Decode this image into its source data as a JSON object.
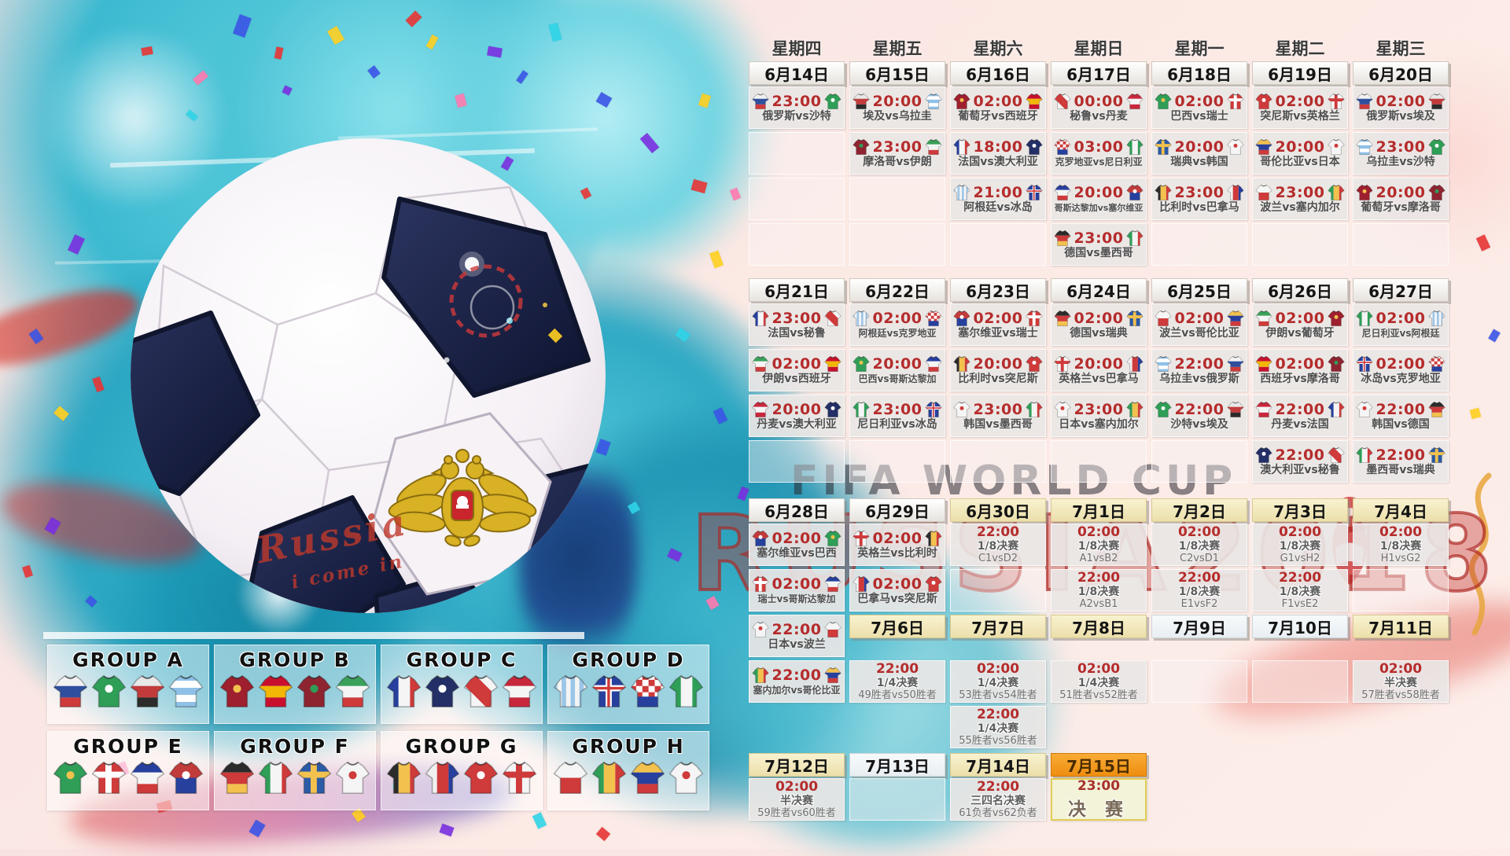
{
  "watermarks": {
    "fifa": "FIFA WORLD CUP",
    "russia": "RUSSIA2018"
  },
  "ball_text": {
    "line1": "Russia",
    "line2": "i come in"
  },
  "weekdays": [
    "星期四",
    "星期五",
    "星期六",
    "星期日",
    "星期一",
    "星期二",
    "星期三"
  ],
  "colors": {
    "time_red": "#b52c2c",
    "date_knockout_bg": "#f2ecc8",
    "final_header_bg": "#f59a23",
    "watermark_red": "#b5322f"
  },
  "groups": [
    {
      "name": "GROUP A",
      "teams": [
        "俄罗斯",
        "沙特",
        "埃及",
        "乌拉圭"
      ]
    },
    {
      "name": "GROUP B",
      "teams": [
        "葡萄牙",
        "西班牙",
        "摩洛哥",
        "伊朗"
      ]
    },
    {
      "name": "GROUP C",
      "teams": [
        "法国",
        "澳大利亚",
        "秘鲁",
        "丹麦"
      ]
    },
    {
      "name": "GROUP D",
      "teams": [
        "阿根廷",
        "冰岛",
        "克罗地亚",
        "尼日利亚"
      ]
    },
    {
      "name": "GROUP E",
      "teams": [
        "巴西",
        "瑞士",
        "哥斯达黎加",
        "塞尔维亚"
      ]
    },
    {
      "name": "GROUP F",
      "teams": [
        "德国",
        "墨西哥",
        "瑞典",
        "韩国"
      ]
    },
    {
      "name": "GROUP G",
      "teams": [
        "比利时",
        "巴拿马",
        "突尼斯",
        "英格兰"
      ]
    },
    {
      "name": "GROUP H",
      "teams": [
        "波兰",
        "塞内加尔",
        "哥伦比亚",
        "日本"
      ]
    }
  ],
  "teams": {
    "俄罗斯": {
      "p": "h3",
      "c": [
        "#f2f2f2",
        "#2f4f9e",
        "#cf3a3a"
      ]
    },
    "沙特": {
      "p": "solid",
      "c": [
        "#2f9e57"
      ],
      "e": "#ffffff"
    },
    "埃及": {
      "p": "h3",
      "c": [
        "#e8e8e8",
        "#c23b3b",
        "#2b2b2b"
      ]
    },
    "乌拉圭": {
      "p": "hoops",
      "c": [
        "#8fc1e8",
        "#ffffff"
      ]
    },
    "葡萄牙": {
      "p": "solid",
      "c": [
        "#9e1f2e"
      ],
      "e": "#f2c14e"
    },
    "西班牙": {
      "p": "h3",
      "c": [
        "#c8102e",
        "#f2b705",
        "#c8102e"
      ]
    },
    "摩洛哥": {
      "p": "solid",
      "c": [
        "#8e2430"
      ],
      "e": "#2f9e57"
    },
    "伊朗": {
      "p": "h3",
      "c": [
        "#3aa05a",
        "#f5f5f5",
        "#cf3a3a"
      ]
    },
    "法国": {
      "p": "v3",
      "c": [
        "#27409e",
        "#f5f5f5",
        "#cf3a3a"
      ]
    },
    "澳大利亚": {
      "p": "solid",
      "c": [
        "#232f66"
      ],
      "e": "#ffffff"
    },
    "秘鲁": {
      "p": "sash",
      "c": [
        "#f5f5f5",
        "#cf3a3a"
      ]
    },
    "丹麦": {
      "p": "h3",
      "c": [
        "#c8283c",
        "#f5f5f5",
        "#c8283c"
      ]
    },
    "阿根廷": {
      "p": "vstripes",
      "c": [
        "#9cc6e8",
        "#f5f5f5"
      ]
    },
    "冰岛": {
      "p": "solid",
      "c": [
        "#27409e"
      ],
      "cross": "#ffffff",
      "cross2": "#cf3a3a"
    },
    "克罗地亚": {
      "p": "checker",
      "c": [
        "#cf3a3a",
        "#ffffff",
        "#27409e"
      ]
    },
    "尼日利亚": {
      "p": "v3",
      "c": [
        "#2f9e57",
        "#f5f5f5",
        "#2f9e57"
      ]
    },
    "巴西": {
      "p": "solid",
      "c": [
        "#2f9e57"
      ],
      "e": "#f2c14e"
    },
    "瑞士": {
      "p": "solid",
      "c": [
        "#cf3a3a"
      ],
      "cross": "#ffffff"
    },
    "哥斯达黎加": {
      "p": "h3",
      "c": [
        "#27409e",
        "#f5f5f5",
        "#cf3a3a"
      ]
    },
    "塞尔维亚": {
      "p": "h2",
      "c": [
        "#c23b3b",
        "#27409e"
      ],
      "e": "#ffffff"
    },
    "德国": {
      "p": "h3",
      "c": [
        "#2b2b2b",
        "#cf3a3a",
        "#f2c14e"
      ]
    },
    "墨西哥": {
      "p": "v3",
      "c": [
        "#2f9e57",
        "#f5f5f5",
        "#cf3a3a"
      ]
    },
    "瑞典": {
      "p": "solid",
      "c": [
        "#2b5aa6"
      ],
      "cross": "#f2c14e"
    },
    "韩国": {
      "p": "solid",
      "c": [
        "#f5f5f5"
      ],
      "e": "#cf3a3a"
    },
    "比利时": {
      "p": "v3",
      "c": [
        "#2b2b2b",
        "#f2c14e",
        "#cf3a3a"
      ]
    },
    "巴拿马": {
      "p": "v3",
      "c": [
        "#f0f0f0",
        "#cf3a3a",
        "#27409e"
      ]
    },
    "突尼斯": {
      "p": "solid",
      "c": [
        "#cf3a3a"
      ],
      "e": "#ffffff"
    },
    "英格兰": {
      "p": "solid",
      "c": [
        "#f5f5f5"
      ],
      "cross": "#cf3a3a"
    },
    "波兰": {
      "p": "h2",
      "c": [
        "#f5f5f5",
        "#cf3a3a"
      ]
    },
    "塞内加尔": {
      "p": "v3",
      "c": [
        "#2f9e57",
        "#f2c14e",
        "#cf3a3a"
      ]
    },
    "哥伦比亚": {
      "p": "h3",
      "c": [
        "#f2c14e",
        "#27409e",
        "#cf3a3a"
      ]
    },
    "日本": {
      "p": "solid",
      "c": [
        "#f5f5f5"
      ],
      "e": "#cf3a3a"
    }
  },
  "bands": [
    {
      "dates": [
        [
          "6月14日",
          "normal"
        ],
        [
          "6月15日",
          "normal"
        ],
        [
          "6月16日",
          "normal"
        ],
        [
          "6月17日",
          "normal"
        ],
        [
          "6月18日",
          "normal"
        ],
        [
          "6月19日",
          "normal"
        ],
        [
          "6月20日",
          "normal"
        ]
      ],
      "rows": [
        [
          [
            "m",
            "23:00",
            "俄罗斯",
            "沙特"
          ],
          [
            "m",
            "20:00",
            "埃及",
            "乌拉圭"
          ],
          [
            "m",
            "02:00",
            "葡萄牙",
            "西班牙"
          ],
          [
            "m",
            "00:00",
            "秘鲁",
            "丹麦"
          ],
          [
            "m",
            "02:00",
            "巴西",
            "瑞士"
          ],
          [
            "m",
            "02:00",
            "突尼斯",
            "英格兰"
          ],
          [
            "m",
            "02:00",
            "俄罗斯",
            "埃及"
          ]
        ],
        [
          [
            "e"
          ],
          [
            "m",
            "23:00",
            "摩洛哥",
            "伊朗"
          ],
          [
            "m",
            "18:00",
            "法国",
            "澳大利亚"
          ],
          [
            "m",
            "03:00",
            "克罗地亚",
            "尼日利亚"
          ],
          [
            "m",
            "20:00",
            "瑞典",
            "韩国"
          ],
          [
            "m",
            "20:00",
            "哥伦比亚",
            "日本"
          ],
          [
            "m",
            "23:00",
            "乌拉圭",
            "沙特"
          ]
        ],
        [
          [
            "e"
          ],
          [
            "e"
          ],
          [
            "m",
            "21:00",
            "阿根廷",
            "冰岛"
          ],
          [
            "m",
            "20:00",
            "哥斯达黎加",
            "塞尔维亚"
          ],
          [
            "m",
            "23:00",
            "比利时",
            "巴拿马"
          ],
          [
            "m",
            "23:00",
            "波兰",
            "塞内加尔"
          ],
          [
            "m",
            "20:00",
            "葡萄牙",
            "摩洛哥"
          ]
        ],
        [
          [
            "e"
          ],
          [
            "e"
          ],
          [
            "e"
          ],
          [
            "m",
            "23:00",
            "德国",
            "墨西哥"
          ],
          [
            "e"
          ],
          [
            "e"
          ],
          [
            "e"
          ]
        ]
      ]
    },
    {
      "dates": [
        [
          "6月21日",
          "normal"
        ],
        [
          "6月22日",
          "normal"
        ],
        [
          "6月23日",
          "normal"
        ],
        [
          "6月24日",
          "normal"
        ],
        [
          "6月25日",
          "normal"
        ],
        [
          "6月26日",
          "normal"
        ],
        [
          "6月27日",
          "normal"
        ]
      ],
      "rows": [
        [
          [
            "m",
            "23:00",
            "法国",
            "秘鲁"
          ],
          [
            "m",
            "02:00",
            "阿根廷",
            "克罗地亚"
          ],
          [
            "m",
            "02:00",
            "塞尔维亚",
            "瑞士"
          ],
          [
            "m",
            "02:00",
            "德国",
            "瑞典"
          ],
          [
            "m",
            "02:00",
            "波兰",
            "哥伦比亚"
          ],
          [
            "m",
            "02:00",
            "伊朗",
            "葡萄牙"
          ],
          [
            "m",
            "02:00",
            "尼日利亚",
            "阿根廷"
          ]
        ],
        [
          [
            "m",
            "02:00",
            "伊朗",
            "西班牙"
          ],
          [
            "m",
            "20:00",
            "巴西",
            "哥斯达黎加"
          ],
          [
            "m",
            "20:00",
            "比利时",
            "突尼斯"
          ],
          [
            "m",
            "20:00",
            "英格兰",
            "巴拿马"
          ],
          [
            "m",
            "22:00",
            "乌拉圭",
            "俄罗斯"
          ],
          [
            "m",
            "02:00",
            "西班牙",
            "摩洛哥"
          ],
          [
            "m",
            "02:00",
            "冰岛",
            "克罗地亚"
          ]
        ],
        [
          [
            "m",
            "20:00",
            "丹麦",
            "澳大利亚"
          ],
          [
            "m",
            "23:00",
            "尼日利亚",
            "冰岛"
          ],
          [
            "m",
            "23:00",
            "韩国",
            "墨西哥"
          ],
          [
            "m",
            "23:00",
            "日本",
            "塞内加尔"
          ],
          [
            "m",
            "22:00",
            "沙特",
            "埃及"
          ],
          [
            "m",
            "22:00",
            "丹麦",
            "法国"
          ],
          [
            "m",
            "22:00",
            "韩国",
            "德国"
          ]
        ],
        [
          [
            "e"
          ],
          [
            "e"
          ],
          [
            "e"
          ],
          [
            "e"
          ],
          [
            "e"
          ],
          [
            "m",
            "22:00",
            "澳大利亚",
            "秘鲁"
          ],
          [
            "m",
            "22:00",
            "墨西哥",
            "瑞典"
          ]
        ]
      ]
    },
    {
      "dates": [
        [
          "6月28日",
          "normal"
        ],
        [
          "6月29日",
          "normal"
        ],
        [
          "6月30日",
          "ko"
        ],
        [
          "7月1日",
          "ko"
        ],
        [
          "7月2日",
          "ko"
        ],
        [
          "7月3日",
          "ko"
        ],
        [
          "7月4日",
          "ko"
        ]
      ],
      "rows": [
        [
          [
            "m",
            "02:00",
            "塞尔维亚",
            "巴西"
          ],
          [
            "m",
            "02:00",
            "英格兰",
            "比利时"
          ],
          [
            "k",
            "22:00",
            "1/8决赛",
            "C1vsD2"
          ],
          [
            "k",
            "02:00",
            "1/8决赛",
            "A1vsB2"
          ],
          [
            "k",
            "02:00",
            "1/8决赛",
            "C2vsD1"
          ],
          [
            "k",
            "02:00",
            "1/8决赛",
            "G1vsH2"
          ],
          [
            "k",
            "02:00",
            "1/8决赛",
            "H1vsG2"
          ]
        ],
        [
          [
            "m",
            "02:00",
            "瑞士",
            "哥斯达黎加"
          ],
          [
            "m",
            "02:00",
            "巴拿马",
            "突尼斯"
          ],
          [
            "e"
          ],
          [
            "k",
            "22:00",
            "1/8决赛",
            "A2vsB1"
          ],
          [
            "k",
            "22:00",
            "1/8决赛",
            "E1vsF2"
          ],
          [
            "k",
            "22:00",
            "1/8决赛",
            "F1vsE2"
          ],
          [
            "e"
          ]
        ],
        [
          [
            "m",
            "22:00",
            "日本",
            "波兰"
          ],
          [
            "d",
            "7月6日",
            "ko"
          ],
          [
            "d",
            "7月7日",
            "ko"
          ],
          [
            "d",
            "7月8日",
            "ko"
          ],
          [
            "d",
            "7月9日",
            "rest"
          ],
          [
            "d",
            "7月10日",
            "rest"
          ],
          [
            "d",
            "7月11日",
            "ko"
          ]
        ],
        [
          [
            "m",
            "22:00",
            "塞内加尔",
            "哥伦比亚"
          ],
          [
            "k",
            "22:00",
            "1/4决赛",
            "49胜者vs50胜者"
          ],
          [
            "k",
            "02:00",
            "1/4决赛",
            "53胜者vs54胜者"
          ],
          [
            "k",
            "02:00",
            "1/4决赛",
            "51胜者vs52胜者"
          ],
          [
            "e"
          ],
          [
            "e"
          ],
          [
            "k",
            "02:00",
            "半决赛",
            "57胜者vs58胜者"
          ]
        ],
        [
          null,
          null,
          [
            "k",
            "22:00",
            "1/4决赛",
            "55胜者vs56胜者"
          ],
          null,
          null,
          null,
          null
        ]
      ]
    },
    {
      "dates": [
        [
          "7月12日",
          "ko"
        ],
        [
          "7月13日",
          "rest"
        ],
        [
          "7月14日",
          "ko"
        ],
        [
          "7月15日",
          "final"
        ],
        null,
        null,
        null
      ],
      "rows": [
        [
          [
            "k",
            "02:00",
            "半决赛",
            "59胜者vs60胜者"
          ],
          [
            "e"
          ],
          [
            "k",
            "22:00",
            "三四名决赛",
            "61负者vs62负者"
          ],
          [
            "f",
            "23:00",
            "决 赛"
          ],
          null,
          null,
          null
        ]
      ]
    }
  ]
}
